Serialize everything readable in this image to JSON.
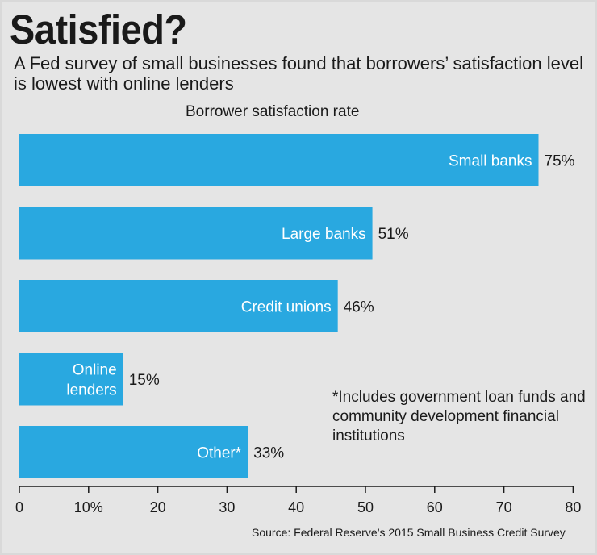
{
  "title": "Satisfied?",
  "subtitle": "A Fed survey of small businesses found that borrowers’ satisfaction level is lowest with online lenders",
  "footnote": "*Includes government loan funds and community development financial institutions",
  "source": "Source: Federal Reserve’s 2015 Small Business Credit Survey",
  "colors": {
    "bar": "#29a8e0",
    "background": "#e5e5e5",
    "text": "#1a1a1a"
  },
  "chart_data": {
    "type": "bar",
    "orientation": "horizontal",
    "title": "Satisfied?",
    "xlabel": "Borrower satisfaction rate",
    "categories": [
      [
        "Small banks"
      ],
      [
        "Large banks"
      ],
      [
        "Credit unions"
      ],
      [
        "Online",
        "lenders"
      ],
      [
        "Other*"
      ]
    ],
    "values": [
      75,
      51,
      46,
      15,
      33
    ],
    "value_labels": [
      "75%",
      "51%",
      "46%",
      "15%",
      "33%"
    ],
    "xlim": [
      0,
      80
    ],
    "ticks": [
      0,
      10,
      20,
      30,
      40,
      50,
      60,
      70,
      80
    ],
    "tick_labels": [
      "0",
      "10%",
      "20",
      "30",
      "40",
      "50",
      "60",
      "70",
      "80"
    ],
    "grid": false,
    "category_labels_inside_bars": true
  }
}
